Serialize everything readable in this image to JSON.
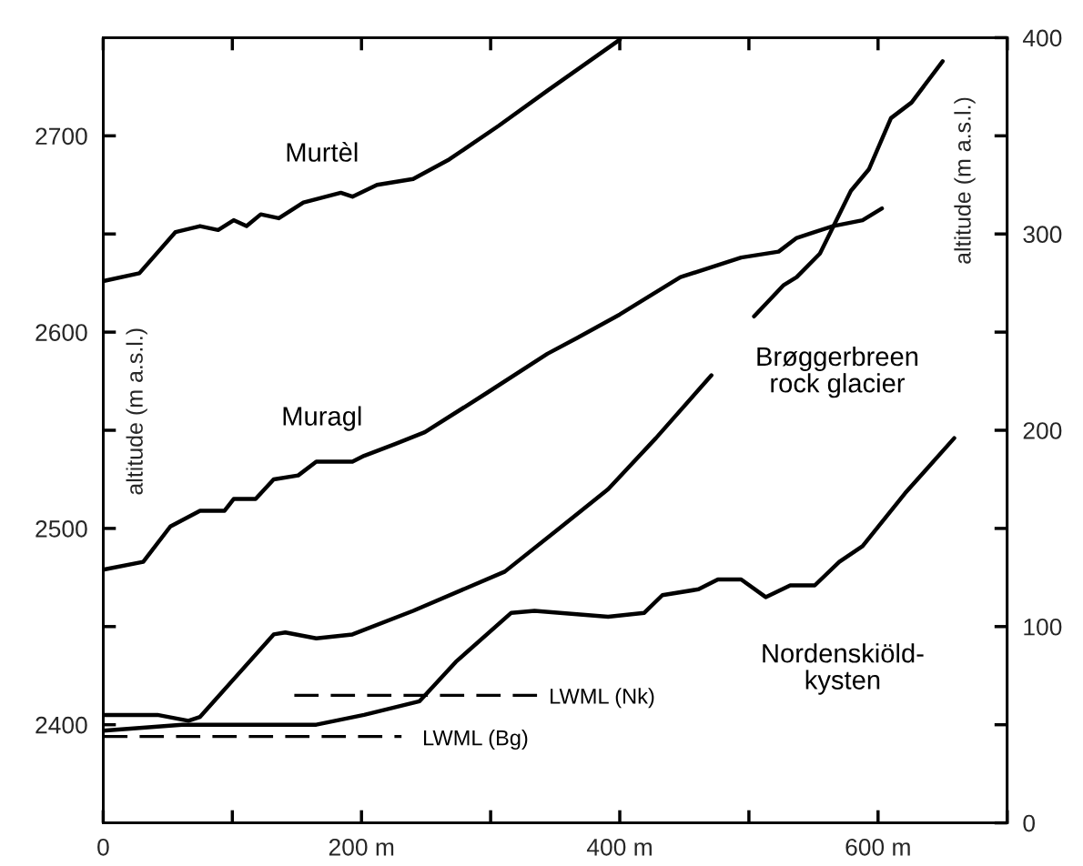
{
  "chart_data": {
    "type": "line",
    "line_style": "solid",
    "legend": false,
    "grid": false,
    "ylabel": "altitude (m a.s.l.)",
    "y2label": "altitude (m a.s.l.)",
    "xlim": [
      0,
      700
    ],
    "xticks": [
      0,
      {
        "value": 100,
        "label": null
      },
      {
        "value": 200,
        "label": "200 m"
      },
      {
        "value": 300,
        "label": null
      },
      {
        "value": 400,
        "label": "400 m"
      },
      {
        "value": 500,
        "label": null
      },
      {
        "value": 600,
        "label": "600 m"
      },
      {
        "value": 700,
        "label": null
      }
    ],
    "ylim": [
      2350,
      2750
    ],
    "yticks": [
      2400,
      {
        "value": 2450,
        "label": null
      },
      2500,
      {
        "value": 2550,
        "label": null
      },
      2600,
      {
        "value": 2650,
        "label": null
      },
      2700
    ],
    "y2lim": [
      0,
      400
    ],
    "y2ticks": [
      0,
      {
        "value": 50,
        "label": null
      },
      100,
      {
        "value": 150,
        "label": null
      },
      200,
      {
        "value": 250,
        "label": null
      },
      300,
      {
        "value": 350,
        "label": null
      },
      400
    ],
    "series": [
      {
        "name": "Murtèl",
        "color": "#000000",
        "x": [
          0,
          28,
          56,
          75,
          89,
          101,
          111,
          122,
          136,
          155,
          184,
          193,
          212,
          240,
          268,
          306,
          344,
          400
        ],
        "values": [
          2626,
          2630,
          2651,
          2654,
          2652,
          2657,
          2654,
          2660,
          2658,
          2666,
          2671,
          2669,
          2675,
          2678,
          2688,
          2705,
          2723,
          2749
        ]
      },
      {
        "name": "Muragl",
        "color": "#000000",
        "x": [
          0,
          31,
          52,
          75,
          94,
          101,
          118,
          132,
          151,
          165,
          193,
          202,
          226,
          249,
          297,
          344,
          367,
          400,
          447,
          494,
          523,
          537,
          565,
          588,
          603
        ],
        "values": [
          2479,
          2483,
          2501,
          2509,
          2509,
          2515,
          2515,
          2525,
          2527,
          2534,
          2534,
          2537,
          2543,
          2549,
          2569,
          2589,
          2597,
          2609,
          2628,
          2638,
          2641,
          2648,
          2654,
          2657,
          2663
        ]
      },
      {
        "name": "Brøggerbreen\nrock glacier",
        "color": "#000000",
        "axis": "y2",
        "x": [
          0,
          42,
          66,
          75,
          132,
          141,
          165,
          193,
          240,
          311,
          353,
          391,
          428,
          471,
          488,
          504,
          527,
          537,
          555,
          579,
          593,
          610,
          626,
          650
        ],
        "values": [
          55,
          55,
          52,
          54,
          96,
          97,
          94,
          96,
          108,
          128,
          150,
          170,
          196,
          228,
          null,
          258,
          274,
          278,
          290,
          322,
          333,
          359,
          367,
          388
        ]
      },
      {
        "name": "Nordenskiöld-\nkysten",
        "color": "#000000",
        "axis": "y2",
        "x": [
          0,
          61,
          108,
          165,
          202,
          245,
          273,
          316,
          334,
          391,
          419,
          433,
          461,
          476,
          494,
          513,
          532,
          551,
          570,
          588,
          621,
          659
        ],
        "values": [
          47,
          50,
          50,
          50,
          55,
          62,
          82,
          107,
          108,
          105,
          107,
          116,
          119,
          124,
          124,
          115,
          121,
          121,
          133,
          141,
          168,
          196
        ]
      },
      {
        "name": "LWML (Nk)",
        "color": "#000000",
        "axis": "y2",
        "type": "line",
        "line_style": "dashed",
        "x": [
          148,
          339
        ],
        "values": [
          65,
          65
        ]
      },
      {
        "name": "LWML (Bg)",
        "color": "#000000",
        "axis": "y2",
        "type": "line",
        "line_style": "dashed",
        "x": [
          0,
          231
        ],
        "values": [
          44,
          44
        ]
      }
    ]
  }
}
